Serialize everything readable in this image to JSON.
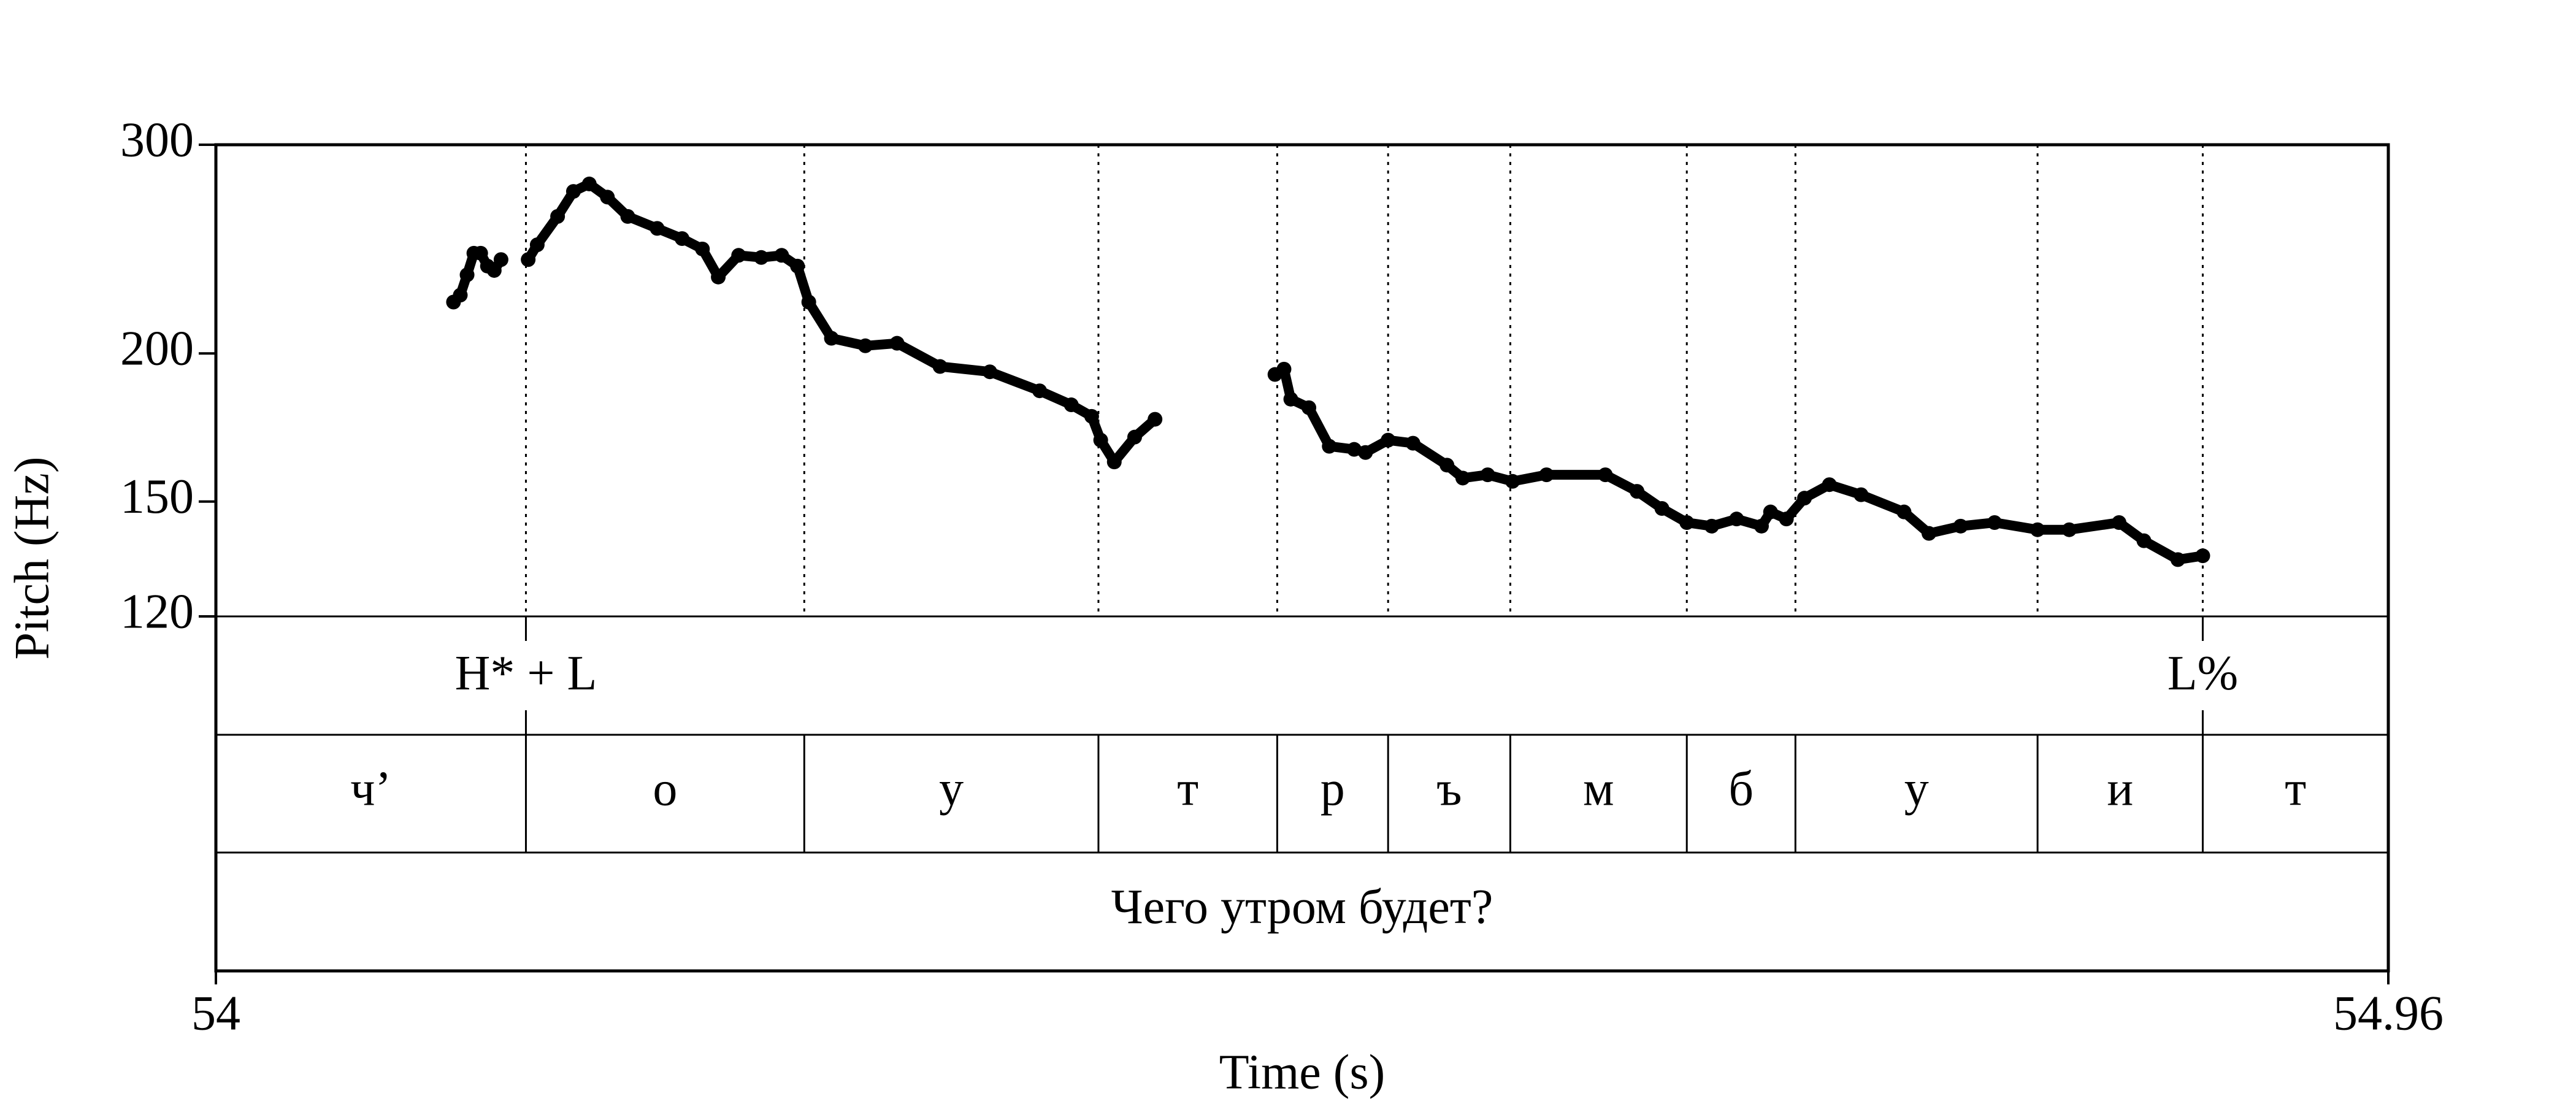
{
  "chart_data": {
    "type": "line",
    "y_label": "Pitch (Hz)",
    "x_label": "Time (s)",
    "xlim": [
      54,
      54.96
    ],
    "xticks": [
      54,
      54.96
    ],
    "ylim": [
      120,
      300
    ],
    "yticks": [
      120,
      150,
      200,
      300
    ],
    "y_scale": "log",
    "series": [
      {
        "color": "#000000",
        "x": [
          54.105,
          54.108,
          54.111,
          54.114,
          54.117,
          54.12,
          54.123,
          54.126,
          null,
          54.138,
          54.142,
          54.151,
          54.158,
          54.165,
          54.173,
          54.182,
          54.195,
          54.206,
          54.215,
          54.222,
          54.231,
          54.241,
          54.25,
          54.257,
          54.262,
          54.272,
          54.287,
          54.301,
          54.32,
          54.342,
          54.364,
          54.378,
          54.387,
          54.391,
          54.397,
          54.406,
          54.415,
          null,
          54.468,
          54.472,
          54.475,
          54.483,
          54.492,
          54.503,
          54.508,
          54.518,
          54.529,
          54.544,
          54.551,
          54.562,
          54.573,
          54.588,
          54.614,
          54.628,
          54.639,
          54.65,
          54.661,
          54.672,
          54.683,
          54.687,
          54.694,
          54.702,
          54.713,
          54.727,
          54.746,
          54.757,
          54.771,
          54.786,
          54.805,
          54.819,
          54.841,
          54.852,
          54.867,
          54.878
        ],
        "values": [
          221,
          224,
          233,
          243,
          243,
          237,
          235,
          240,
          null,
          240,
          247,
          261,
          274,
          278,
          271,
          261,
          255,
          250,
          245,
          232,
          242,
          241,
          242,
          237,
          221,
          206,
          203,
          204,
          195,
          193,
          186,
          181,
          177,
          169,
          162,
          170,
          176,
          null,
          192,
          194,
          183,
          180,
          167,
          166,
          165,
          169,
          168,
          161,
          157,
          158,
          156,
          158,
          158,
          153,
          148,
          144,
          143,
          145,
          143,
          147,
          145,
          151,
          155,
          152,
          147,
          141,
          143,
          144,
          142,
          142,
          144,
          139,
          134,
          135
        ]
      }
    ],
    "tone_tier": {
      "times": [
        54.137,
        54.878
      ],
      "labels": [
        "H* + L",
        "L%"
      ]
    },
    "segment_tier": {
      "boundaries": [
        54.137,
        54.26,
        54.39,
        54.469,
        54.518,
        54.572,
        54.65,
        54.698,
        54.805,
        54.878
      ],
      "labels": [
        "ч’",
        "о",
        "у",
        "т",
        "р",
        "ъ",
        "м",
        "б",
        "у",
        "и",
        "т"
      ]
    },
    "word_tier": {
      "labels": [
        "Чего утром будет?"
      ]
    }
  }
}
